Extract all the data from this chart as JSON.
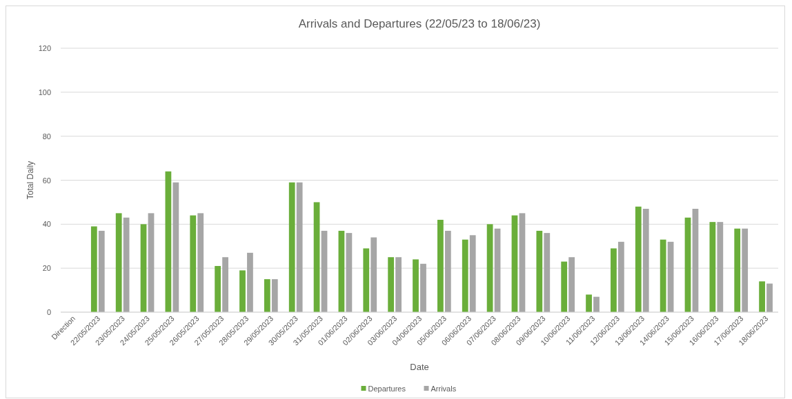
{
  "chart_data": {
    "type": "bar",
    "title": "Arrivals and Departures (22/05/23 to 18/06/23)",
    "xlabel": "Date",
    "ylabel": "Total Daily",
    "categories": [
      "Direction",
      "22/05/2023",
      "23/05/2023",
      "24/05/2023",
      "25/05/2023",
      "26/05/2023",
      "27/05/2023",
      "28/05/2023",
      "29/05/2023",
      "30/05/2023",
      "31/05/2023",
      "01/06/2023",
      "02/06/2023",
      "03/06/2023",
      "04/06/2023",
      "05/06/2023",
      "06/06/2023",
      "07/06/2023",
      "08/06/2023",
      "09/06/2023",
      "10/06/2023",
      "11/06/2023",
      "12/06/2023",
      "13/06/2023",
      "14/06/2023",
      "15/06/2023",
      "16/06/2023",
      "17/06/2023",
      "18/06/2023"
    ],
    "series": [
      {
        "name": "Departures",
        "color": "#6aae3a",
        "values": [
          null,
          39,
          45,
          40,
          64,
          44,
          21,
          19,
          15,
          59,
          50,
          37,
          29,
          25,
          24,
          42,
          33,
          40,
          44,
          37,
          23,
          8,
          29,
          48,
          33,
          43,
          41,
          38,
          14
        ]
      },
      {
        "name": "Arrivals",
        "color": "#a6a6a6",
        "values": [
          null,
          37,
          43,
          45,
          59,
          45,
          25,
          27,
          15,
          59,
          37,
          36,
          34,
          25,
          22,
          37,
          35,
          38,
          45,
          36,
          25,
          7,
          32,
          47,
          32,
          47,
          41,
          38,
          13
        ]
      }
    ],
    "ylim": [
      0,
      120
    ],
    "yticks": [
      0,
      20,
      40,
      60,
      80,
      100,
      120
    ],
    "grid": "y",
    "legend": "bottom"
  }
}
